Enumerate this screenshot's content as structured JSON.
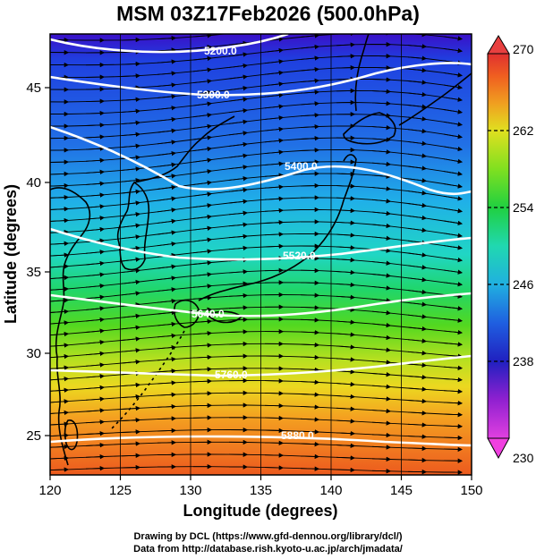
{
  "title": "MSM 03Z17Feb2026 (500.0hPa)",
  "axes": {
    "xlabel": "Longitude (degrees)",
    "ylabel": "Latitude  (degrees)",
    "xlim": [
      120,
      150
    ],
    "ylim": [
      22.4,
      47.6
    ],
    "xticks": [
      "120",
      "125",
      "130",
      "135",
      "140",
      "145",
      "150"
    ],
    "yticks": [
      "25",
      "30",
      "35",
      "40",
      "45"
    ]
  },
  "colorbar": {
    "min": 230,
    "max": 270,
    "ticks": [
      "230",
      "238",
      "246",
      "254",
      "262",
      "270"
    ],
    "colors": [
      "#e040e0",
      "#9020d0",
      "#2020c0",
      "#1f5fe0",
      "#20b0e0",
      "#20d8b0",
      "#20d040",
      "#80e020",
      "#e0e020",
      "#f0a020",
      "#f06020",
      "#e03030"
    ]
  },
  "contours": [
    {
      "label": "5200.0"
    },
    {
      "label": "5300.0"
    },
    {
      "label": "5400.0"
    },
    {
      "label": "5520.0"
    },
    {
      "label": "5640.0"
    },
    {
      "label": "5760.0"
    },
    {
      "label": "5880.0"
    }
  ],
  "credits": {
    "line1": "Drawing by DCL (https://www.gfd-dennou.org/library/dcl/)",
    "line2": "Data from http://database.rish.kyoto-u.ac.jp/arch/jmadata/"
  }
}
